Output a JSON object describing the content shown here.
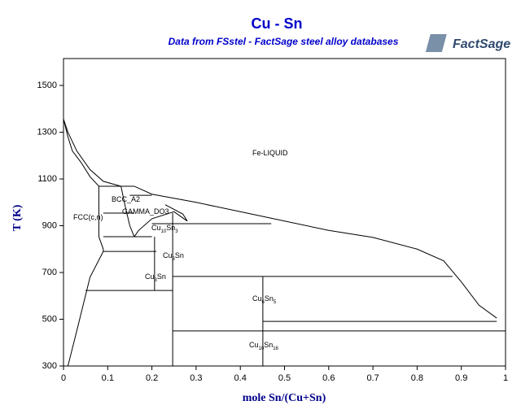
{
  "chart_data": {
    "type": "phase-diagram",
    "title": "Cu - Sn",
    "subtitle": "Data from FSstel - FactSage steel alloy databases",
    "logo": "FactSage",
    "x_label": "mole Sn/(Cu+Sn)",
    "y_label": "T (K)",
    "xlim": [
      0,
      1
    ],
    "ylim": [
      300,
      1615
    ],
    "xticks": [
      0,
      0.1,
      0.2,
      0.3,
      0.4,
      0.5,
      0.6,
      0.7,
      0.8,
      0.9,
      1
    ],
    "yticks": [
      300,
      500,
      700,
      900,
      1100,
      1300,
      1500
    ],
    "color": "#000000",
    "boundaries": [
      {
        "x": [
          0,
          0.01,
          0.03,
          0.06,
          0.09,
          0.13,
          0.16,
          0.2,
          0.3,
          0.4,
          0.5,
          0.6,
          0.7,
          0.8,
          0.86,
          0.9,
          0.94,
          0.98
        ],
        "y": [
          1356,
          1300,
          1220,
          1140,
          1090,
          1069,
          1069,
          1035,
          1000,
          960,
          920,
          880,
          850,
          800,
          750,
          660,
          560,
          505
        ]
      },
      {
        "x": [
          0,
          0.01,
          0.02,
          0.04,
          0.06,
          0.08
        ],
        "y": [
          1356,
          1280,
          1220,
          1170,
          1110,
          1069
        ]
      },
      {
        "x": [
          0.08,
          0.08,
          0.09,
          0.09
        ],
        "y": [
          1069,
          853,
          800,
          790
        ]
      },
      {
        "x": [
          0.09,
          0.06,
          0.03,
          0.01
        ],
        "y": [
          790,
          680,
          450,
          300
        ]
      },
      {
        "x": [
          0.08,
          0.16
        ],
        "y": [
          1069,
          1069
        ]
      },
      {
        "x": [
          0.15,
          0.2
        ],
        "y": [
          1030,
          1030
        ]
      },
      {
        "x": [
          0.09,
          0.16
        ],
        "y": [
          954,
          954
        ]
      },
      {
        "x": [
          0.2,
          0.47
        ],
        "y": [
          909,
          909
        ]
      },
      {
        "x": [
          0.09,
          0.2
        ],
        "y": [
          853,
          853
        ]
      },
      {
        "x": [
          0.09,
          0.21
        ],
        "y": [
          790,
          790
        ]
      },
      {
        "x": [
          0.05,
          0.247
        ],
        "y": [
          623,
          623
        ]
      },
      {
        "x": [
          0.247,
          0.88
        ],
        "y": [
          683,
          683
        ]
      },
      {
        "x": [
          0.451,
          0.98
        ],
        "y": [
          491,
          491
        ]
      },
      {
        "x": [
          0.247,
          1
        ],
        "y": [
          450,
          450
        ]
      },
      {
        "x": [
          0.247,
          0.247
        ],
        "y": [
          954,
          300
        ]
      },
      {
        "x": [
          0.206,
          0.206
        ],
        "y": [
          853,
          623
        ]
      },
      {
        "x": [
          0.451,
          0.451
        ],
        "y": [
          683,
          300
        ]
      },
      {
        "x": [
          0.13,
          0.14,
          0.15,
          0.16
        ],
        "y": [
          1069,
          980,
          900,
          853
        ]
      },
      {
        "x": [
          0.16,
          0.17,
          0.2,
          0.25,
          0.28,
          0.27,
          0.23
        ],
        "y": [
          853,
          880,
          930,
          960,
          920,
          950,
          990
        ]
      }
    ],
    "annotations": [
      {
        "text": [
          "Fe-LIQUID"
        ]
      },
      {
        "text": [
          "FCC(c,n)"
        ]
      },
      {
        "text": [
          "BCC_A2"
        ]
      },
      {
        "text": [
          "GAMMA_DO3"
        ]
      },
      {
        "text": [
          "Cu",
          "10",
          "Sn",
          "3"
        ]
      },
      {
        "text": [
          "Cu",
          "3",
          "Sn"
        ]
      },
      {
        "text": [
          "Cu",
          "3",
          "Sn"
        ]
      },
      {
        "text": [
          "Cu",
          "6",
          "Sn",
          "5"
        ]
      },
      {
        "text": [
          "Cu",
          "10",
          "Sn",
          "16"
        ]
      }
    ]
  }
}
